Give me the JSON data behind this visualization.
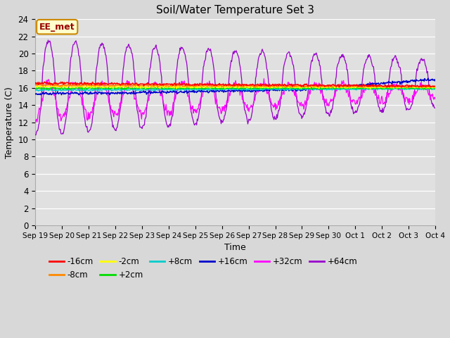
{
  "title": "Soil/Water Temperature Set 3",
  "xlabel": "Time",
  "ylabel": "Temperature (C)",
  "ylim": [
    0,
    24
  ],
  "yticks": [
    0,
    2,
    4,
    6,
    8,
    10,
    12,
    14,
    16,
    18,
    20,
    22,
    24
  ],
  "xlim": [
    0,
    15
  ],
  "xtick_labels": [
    "Sep 19",
    "Sep 20",
    "Sep 21",
    "Sep 22",
    "Sep 23",
    "Sep 24",
    "Sep 25",
    "Sep 26",
    "Sep 27",
    "Sep 28",
    "Sep 29",
    "Sep 30",
    "Oct 1",
    "Oct 2",
    "Oct 3",
    "Oct 4"
  ],
  "annotation_text": "EE_met",
  "annotation_bg": "#ffffcc",
  "annotation_border": "#cc8800",
  "annotation_text_color": "#990000",
  "colors": {
    "-16cm": "#ff0000",
    "-8cm": "#ff8800",
    "-2cm": "#ffff00",
    "+2cm": "#00dd00",
    "+8cm": "#00cccc",
    "+16cm": "#0000cc",
    "+32cm": "#ff00ff",
    "+64cm": "#9900cc"
  },
  "fig_facecolor": "#d8d8d8",
  "plot_bg": "#e0e0e0"
}
